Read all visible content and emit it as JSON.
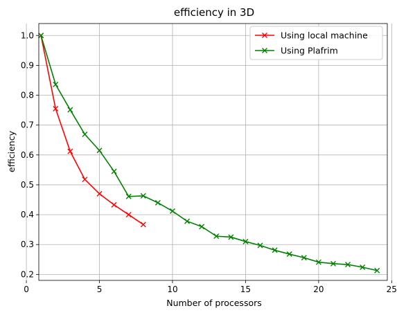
{
  "chart_data": {
    "type": "line",
    "title": "efficiency in 3D",
    "xlabel": "Number of processors",
    "ylabel": "efficiency",
    "xlim": [
      0.85,
      24.7
    ],
    "ylim": [
      0.18,
      1.04
    ],
    "xticks": [
      0,
      5,
      10,
      15,
      20,
      25
    ],
    "yticks": [
      0.2,
      0.3,
      0.4,
      0.5,
      0.6,
      0.7,
      0.8,
      0.9,
      1.0
    ],
    "grid": true,
    "legend_position": "top-right",
    "series": [
      {
        "name": "Using local machine",
        "color": "#ff0000",
        "marker": "x",
        "x": [
          1,
          2,
          3,
          4,
          5,
          6,
          7,
          8
        ],
        "y": [
          1.0,
          0.755,
          0.612,
          0.518,
          0.47,
          0.433,
          0.4,
          0.367
        ]
      },
      {
        "name": "Using Plafrim",
        "color": "#008000",
        "marker": "x",
        "x": [
          1,
          2,
          3,
          4,
          5,
          6,
          7,
          8,
          9,
          10,
          11,
          12,
          13,
          14,
          15,
          16,
          17,
          18,
          19,
          20,
          21,
          22,
          23,
          24
        ],
        "y": [
          1.0,
          0.836,
          0.751,
          0.669,
          0.615,
          0.545,
          0.461,
          0.463,
          0.44,
          0.412,
          0.378,
          0.36,
          0.328,
          0.325,
          0.31,
          0.297,
          0.281,
          0.268,
          0.256,
          0.241,
          0.236,
          0.233,
          0.224,
          0.213
        ]
      }
    ]
  }
}
